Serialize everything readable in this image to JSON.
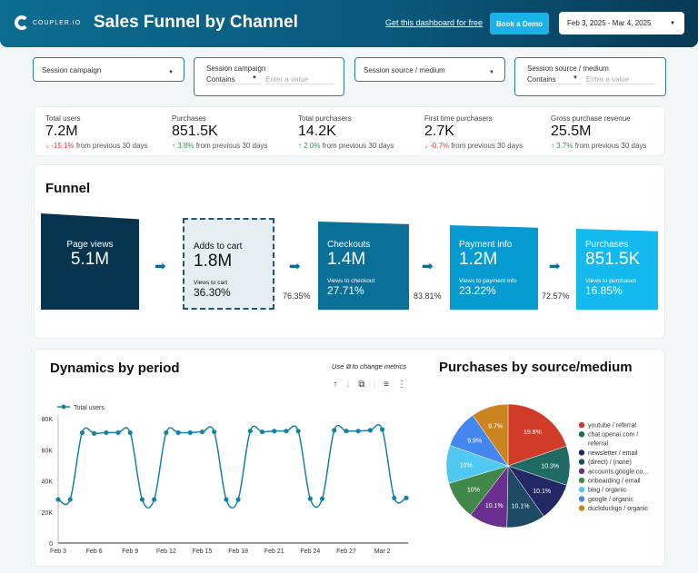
{
  "header": {
    "logo": "COUPLER.IO",
    "title": "Sales Funnel by Channel",
    "get_link": "Get this dashboard for free",
    "book_demo": "Book a Demo",
    "date_range": "Feb 3, 2025 - Mar 4, 2025"
  },
  "filters": [
    {
      "label": "Session campaign",
      "type": "dropdown"
    },
    {
      "label": "Session campaign",
      "operator": "Contains",
      "placeholder": "Enter a value"
    },
    {
      "label": "Session source / medium",
      "type": "dropdown"
    },
    {
      "label": "Session source / medium",
      "operator": "Contains",
      "placeholder": "Enter a value"
    }
  ],
  "kpis": [
    {
      "label": "Total users",
      "value": "7.2M",
      "delta": "-15.1%",
      "dir": "down",
      "suffix": "from previous 30 days"
    },
    {
      "label": "Purchases",
      "value": "851.5K",
      "delta": "3.8%",
      "dir": "up",
      "suffix": "from previous 30 days"
    },
    {
      "label": "Total purchasers",
      "value": "14.2K",
      "delta": "2.0%",
      "dir": "up",
      "suffix": "from previous 30 days"
    },
    {
      "label": "First time purchasers",
      "value": "2.7K",
      "delta": "-0.7%",
      "dir": "down",
      "suffix": "from previous 30 days"
    },
    {
      "label": "Gross purchase revenue",
      "value": "25.5M",
      "delta": "3.7%",
      "dir": "up",
      "suffix": "from previous 30 days"
    }
  ],
  "funnel": {
    "title": "Funnel",
    "steps": [
      {
        "label": "Page views",
        "value": "5.1M",
        "color": "#06344f"
      },
      {
        "label": "Adds to cart",
        "value": "1.8M",
        "sub_label": "Views to cart",
        "sub_value": "36.30%",
        "color": "#e6eef1"
      },
      {
        "label": "Checkouts",
        "value": "1.4M",
        "sub_label": "Views to checkout",
        "sub_value": "27.71%",
        "color": "#0a7098"
      },
      {
        "label": "Payment info",
        "value": "1.2M",
        "sub_label": "Views to payment info",
        "sub_value": "23.22%",
        "color": "#069bd0"
      },
      {
        "label": "Purchases",
        "value": "851.5K",
        "sub_label": "Views to purchases",
        "sub_value": "16.85%",
        "color": "#14b9ef"
      }
    ],
    "step_rates": [
      "76.35%",
      "83.81%",
      "72.57%"
    ]
  },
  "dynamics": {
    "title": "Dynamics by period",
    "hint_pre": "Use",
    "hint_post": "to change metrics"
  },
  "chart_data": [
    {
      "type": "line",
      "legend": "Total users",
      "legend_position": "top-left",
      "color": "#1581a6",
      "x": [
        "Feb 3",
        "Feb 4",
        "Feb 5",
        "Feb 6",
        "Feb 7",
        "Feb 8",
        "Feb 9",
        "Feb 10",
        "Feb 11",
        "Feb 12",
        "Feb 13",
        "Feb 14",
        "Feb 15",
        "Feb 16",
        "Feb 17",
        "Feb 18",
        "Feb 19",
        "Feb 20",
        "Feb 21",
        "Feb 22",
        "Feb 23",
        "Feb 24",
        "Feb 25",
        "Feb 26",
        "Feb 27",
        "Feb 28",
        "Mar 1",
        "Mar 2",
        "Mar 3",
        "Mar 4"
      ],
      "x_ticks": [
        "Feb 3",
        "Feb 6",
        "Feb 9",
        "Feb 12",
        "Feb 15",
        "Feb 18",
        "Feb 21",
        "Feb 24",
        "Feb 27",
        "Mar 2"
      ],
      "y": [
        28000,
        28000,
        71000,
        70500,
        71000,
        71000,
        71000,
        28000,
        28000,
        71000,
        71000,
        71000,
        71500,
        71500,
        28000,
        28000,
        72000,
        71500,
        72000,
        72000,
        72000,
        28500,
        28500,
        72500,
        72000,
        72000,
        72500,
        73000,
        29000,
        29000
      ],
      "y_ticks": [
        "0",
        "20K",
        "40K",
        "60K",
        "80K"
      ],
      "ylim": [
        0,
        80000
      ]
    },
    {
      "type": "pie",
      "title": "Purchases by source/medium",
      "legend_position": "right",
      "slices": [
        {
          "name": "youtube / referral",
          "value": 19.8,
          "label": "19.8%",
          "color": "#d13b2a"
        },
        {
          "name": "chat.openai.com / referral",
          "value": 10.3,
          "label": "10.3%",
          "color": "#1f6b63"
        },
        {
          "name": "newsletter / email",
          "value": 10.1,
          "label": "10.1%",
          "color": "#232763"
        },
        {
          "name": "(direct) / (none)",
          "value": 10.1,
          "label": "10.1%",
          "color": "#1e4a66"
        },
        {
          "name": "accounts.google.co...",
          "value": 10.1,
          "label": "10.1%",
          "color": "#6a2f8f"
        },
        {
          "name": "onboarding / email",
          "value": 10,
          "label": "10%",
          "color": "#41884a"
        },
        {
          "name": "bing / organic",
          "value": 10,
          "label": "10%",
          "color": "#4fc8f2"
        },
        {
          "name": "google / organic",
          "value": 9.9,
          "label": "9.9%",
          "color": "#4488ef"
        },
        {
          "name": "duckduckgo / organic",
          "value": 9.7,
          "label": "9.7%",
          "color": "#cc8420"
        }
      ]
    }
  ]
}
